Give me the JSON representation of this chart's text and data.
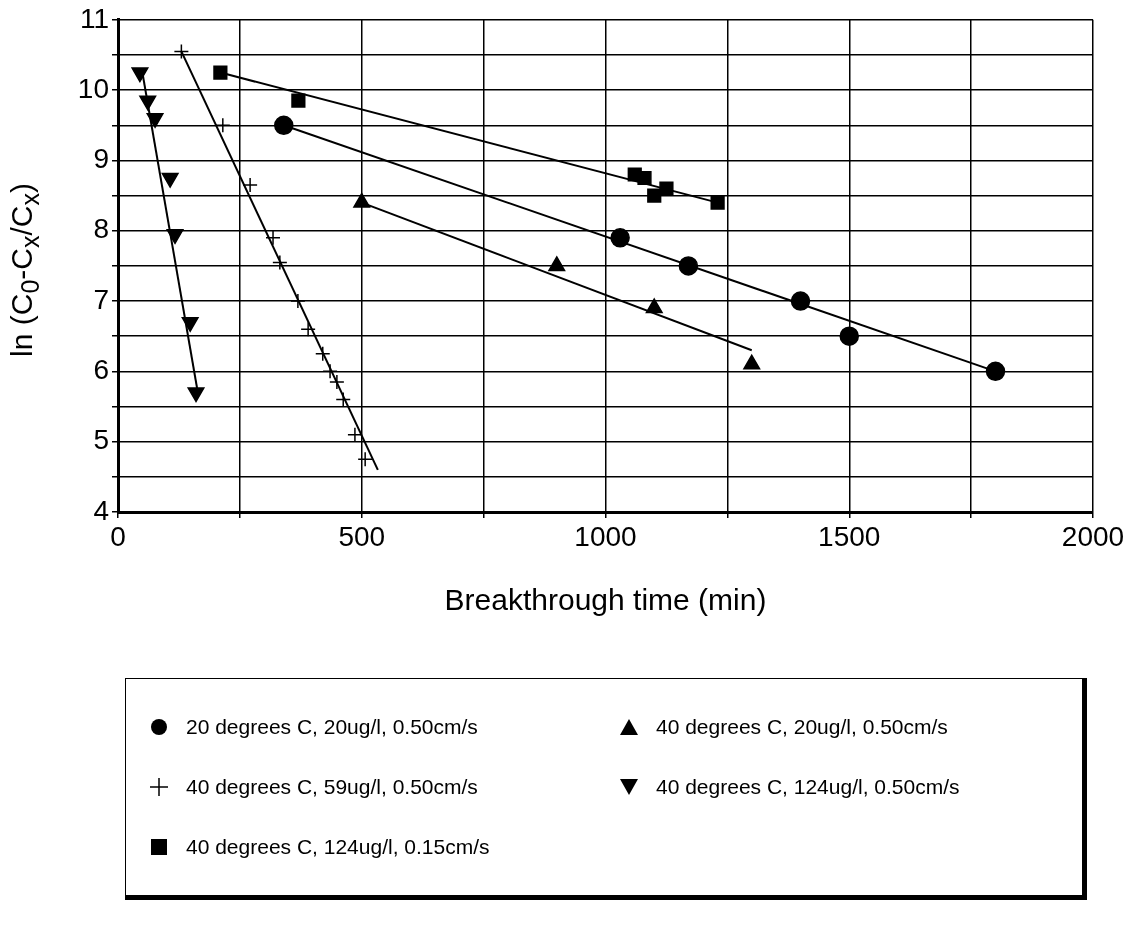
{
  "chart_data": {
    "type": "scatter",
    "xlabel": "Breakthrough time (min)",
    "ylabel": "ln (C$_{0}$-C$_{x}$/C$_{x}$)",
    "xlim": [
      0,
      2000
    ],
    "ylim": [
      4,
      11
    ],
    "xticks": [
      0,
      {
        "value": 250,
        "label": null
      },
      500,
      {
        "value": 750,
        "label": null
      },
      1000,
      {
        "value": 1250,
        "label": null
      },
      1500,
      {
        "value": 1750,
        "label": null
      },
      2000
    ],
    "yticks": [
      4,
      {
        "value": 4.5,
        "label": null
      },
      5,
      {
        "value": 5.5,
        "label": null
      },
      6,
      {
        "value": 6.5,
        "label": null
      },
      7,
      {
        "value": 7.5,
        "label": null
      },
      8,
      {
        "value": 8.5,
        "label": null
      },
      9,
      {
        "value": 9.5,
        "label": null
      },
      10,
      {
        "value": 10.5,
        "label": null
      },
      11
    ],
    "grid": true,
    "legend": "bottom",
    "series": [
      {
        "name": "20 degrees C, 20ug/l, 0.50cm/s",
        "color": "#000000",
        "marker": "circle",
        "x": [
          340,
          1030,
          1170,
          1400,
          1500,
          1800
        ],
        "values": [
          9.5,
          7.9,
          7.5,
          7.0,
          6.5,
          6.0
        ]
      },
      {
        "name": "40 degrees C, 20ug/l, 0.50cm/s",
        "color": "#000000",
        "marker": "triangle",
        "x": [
          500,
          900,
          1100,
          1300
        ],
        "values": [
          8.4,
          7.5,
          6.9,
          6.1
        ]
      },
      {
        "name": "40 degrees C, 59ug/l, 0.50cm/s",
        "color": "#000000",
        "marker": "cross",
        "x": [
          130,
          215,
          271,
          318,
          332,
          369,
          390,
          420,
          435,
          449,
          462,
          486,
          507
        ],
        "values": [
          10.55,
          9.5,
          8.65,
          7.9,
          7.55,
          7.0,
          6.6,
          6.25,
          6.0,
          5.85,
          5.6,
          5.1,
          4.75
        ]
      },
      {
        "name": "40 degrees C, 124ug/l, 0.50cm/s",
        "color": "#000000",
        "marker": "triangle-down",
        "x": [
          45,
          61,
          76,
          107,
          117,
          148,
          160
        ],
        "values": [
          10.25,
          9.85,
          9.6,
          8.75,
          7.95,
          6.7,
          5.7
        ]
      },
      {
        "name": "40 degrees C, 124ug/l, 0.15cm/s",
        "color": "#000000",
        "marker": "square",
        "x": [
          210,
          370,
          1060,
          1080,
          1100,
          1125,
          1230
        ],
        "values": [
          10.25,
          9.85,
          8.8,
          8.75,
          8.5,
          8.6,
          8.4
        ]
      },
      {
        "type": "line",
        "color": "#000000",
        "marker": "none",
        "x": [
          340,
          1800
        ],
        "values": [
          9.5,
          6.0
        ]
      },
      {
        "type": "line",
        "color": "#000000",
        "marker": "none",
        "x": [
          500,
          1300
        ],
        "values": [
          8.4,
          6.3
        ]
      },
      {
        "type": "line",
        "color": "#000000",
        "marker": "none",
        "x": [
          130,
          533
        ],
        "values": [
          10.55,
          4.6
        ]
      },
      {
        "type": "line",
        "color": "#000000",
        "marker": "none",
        "x": [
          50,
          165
        ],
        "values": [
          10.25,
          5.65
        ]
      },
      {
        "type": "line",
        "color": "#000000",
        "marker": "none",
        "x": [
          210,
          1230
        ],
        "values": [
          10.25,
          8.4
        ]
      }
    ]
  }
}
